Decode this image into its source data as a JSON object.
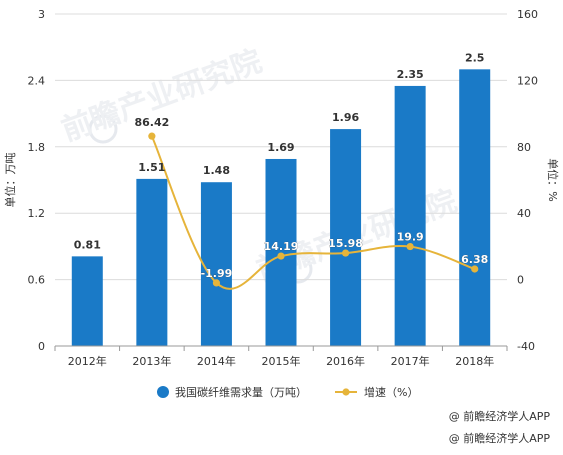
{
  "chart_data": {
    "type": "bar",
    "categories": [
      "2012年",
      "2013年",
      "2014年",
      "2015年",
      "2016年",
      "2017年",
      "2018年"
    ],
    "series": [
      {
        "name": "我国碳纤维需求量（万吨）",
        "type": "bar",
        "axis": "left",
        "values": [
          0.81,
          1.51,
          1.48,
          1.69,
          1.96,
          2.35,
          2.5
        ],
        "labels": [
          "0.81",
          "1.51",
          "1.48",
          "1.69",
          "1.96",
          "2.35",
          "2.5"
        ],
        "color": "#1a7ac7"
      },
      {
        "name": "增速（%）",
        "type": "line",
        "axis": "right",
        "values": [
          null,
          86.42,
          -1.99,
          14.19,
          15.98,
          19.9,
          6.38
        ],
        "labels": [
          "",
          "86.42",
          "-1.99",
          "14.19",
          "15.98",
          "19.9",
          "6.38"
        ],
        "color": "#e6b43a"
      }
    ],
    "ylabel_left": "单位：万吨",
    "ylabel_right": "单位：%",
    "ylim_left": [
      0,
      3
    ],
    "yticks_left": [
      "0",
      "0.6",
      "1.2",
      "1.8",
      "2.4",
      "3"
    ],
    "ylim_right": [
      -40,
      160
    ],
    "yticks_right": [
      "-40",
      "0",
      "40",
      "80",
      "120",
      "160"
    ],
    "grid": true,
    "legend": "bottom"
  },
  "watermark": "前瞻产业研究院",
  "source_lines": [
    "@ 前瞻经济学人APP",
    "@ 前瞻经济学人APP"
  ],
  "colors": {
    "bar": "#1a7ac7",
    "line": "#e6b43a",
    "grid": "#dcdcdc",
    "axis": "#999999",
    "text": "#333333"
  }
}
